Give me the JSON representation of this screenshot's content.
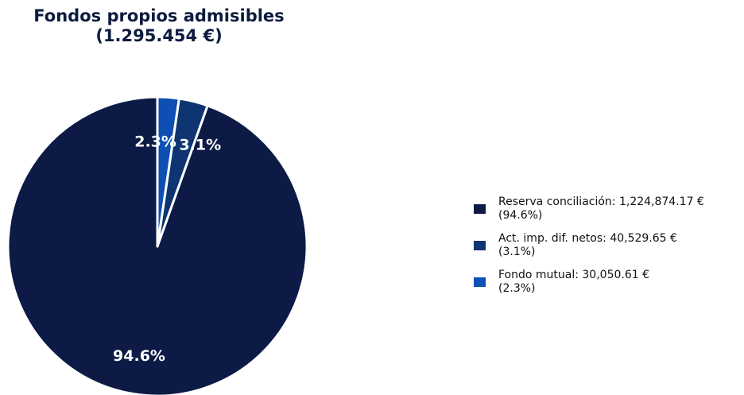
{
  "chart_data": {
    "type": "pie",
    "title": "Fondos propios admisibles",
    "subtitle": "(1.295.454 €)",
    "slices": [
      {
        "name": "Reserva conciliación",
        "value": 1224874.17,
        "value_text": "1,224,874.17 €",
        "pct_text": "(94.6%)",
        "label": "94.6%",
        "color": "#0c1a45"
      },
      {
        "name": "Act. imp. dif. netos",
        "value": 40529.65,
        "value_text": "40,529.65 €",
        "pct_text": "(3.1%)",
        "label": "3.1%",
        "color": "#0e3572"
      },
      {
        "name": "Fondo mutual",
        "value": 30050.61,
        "value_text": "30,050.61 €",
        "pct_text": "(2.3%)",
        "label": "2.3%",
        "color": "#0d4fb3"
      }
    ],
    "legend_position": "right"
  }
}
